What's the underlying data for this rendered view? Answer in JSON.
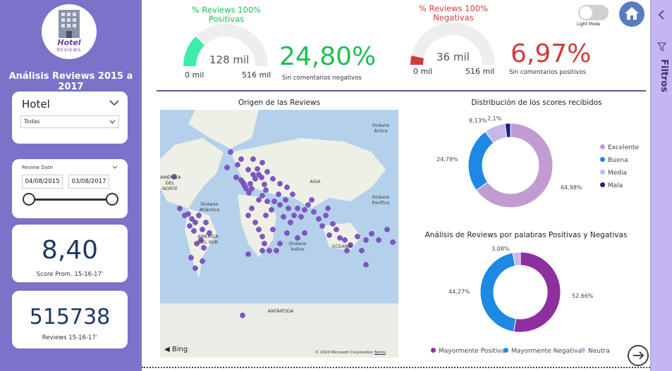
{
  "sidebar": {
    "logo": {
      "line1": "Hotel",
      "line2": "REVIEWS"
    },
    "title": "Análisis Reviews 2015 a 2017",
    "hotel_filter": {
      "title": "Hotel",
      "value": "Todas"
    },
    "date_filter": {
      "title": "Review Date",
      "start": "04/08/2015",
      "end": "03/08/2017"
    },
    "score_card": {
      "value": "8,40",
      "label": "Score Prom. 15-16-17'"
    },
    "reviews_card": {
      "value": "515738",
      "label": "Reviews 15-16-17'"
    }
  },
  "kpi_positive": {
    "title": "% Reviews 100% Positivas",
    "gauge_value": "128 mil",
    "gauge_min": "0 mil",
    "gauge_max": "516 mil",
    "gauge_fraction": 0.248,
    "percent": "24,80%",
    "subtitle": "Sin comentarios negativos",
    "color": "#1fbf4e",
    "gauge_color": "#3dedaa"
  },
  "kpi_negative": {
    "title": "% Reviews 100% Negativas",
    "gauge_value": "36 mil",
    "gauge_min": "0 mil",
    "gauge_max": "516 mil",
    "gauge_fraction": 0.0697,
    "percent": "6,97%",
    "subtitle": "Sin comentarios positivos",
    "color": "#d13b3b",
    "gauge_color": "#d13b3b"
  },
  "toggle": {
    "label": "Light Mode"
  },
  "map": {
    "title": "Origen de las Reviews",
    "labels": [
      "Océano Ártico",
      "AMÉRICA DEL NORTE",
      "Océano Atlántico",
      "ASIA",
      "Océano Pacífico",
      "AMÉRICA DEL SUR",
      "Océano Índico",
      "OCEANÍA",
      "ANTÁRTIDA"
    ],
    "bing": "Bing",
    "copyright": "© 2020 Microsoft Corporation",
    "terms": "Terms"
  },
  "chart_data": [
    {
      "type": "pie",
      "title": "Distribución de los scores recibidos",
      "categories": [
        "Excelente",
        "Buena",
        "Media",
        "Mala"
      ],
      "values": [
        64.98,
        24.79,
        8.13,
        2.1
      ],
      "value_labels": [
        "64,98%",
        "24,79%",
        "8,13%",
        "2,1%"
      ],
      "colors": [
        "#c39bd3",
        "#1e88e5",
        "#c8b8e8",
        "#1a237e"
      ],
      "legend": "right"
    },
    {
      "type": "pie",
      "title": "Análisis de Reviews por palabras Positivas y Negativas",
      "categories": [
        "Mayormente Positiva",
        "Mayormente Negativa",
        "Neutra"
      ],
      "values": [
        52.66,
        44.27,
        3.08
      ],
      "value_labels": [
        "52,66%",
        "44,27%",
        "3,08%"
      ],
      "colors": [
        "#8e2fa0",
        "#1e88e5",
        "#c8b8e8"
      ],
      "legend": "bottom"
    }
  ],
  "filters_pane": {
    "label": "Filtros"
  }
}
